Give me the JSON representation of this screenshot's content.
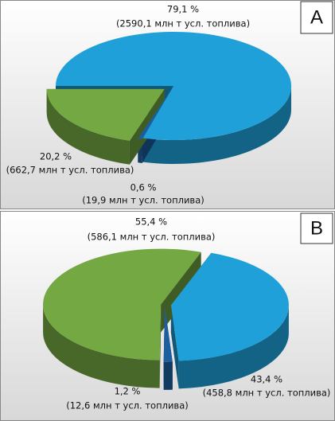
{
  "chart_data": [
    {
      "type": "pie",
      "panel": "A",
      "values": [
        79.1,
        0.6,
        20.2
      ],
      "value_labels": [
        "79,1 %",
        "0,6 %",
        "20,2 %"
      ],
      "annotations": [
        "(2590,1 млн т усл. топлива)",
        "(19,9 млн т усл. топлива)",
        "(662,7 млн т усл. топлива)"
      ],
      "colors": [
        "#1fa0d8",
        "#1d5f9e",
        "#74a843"
      ]
    },
    {
      "type": "pie",
      "panel": "B",
      "values": [
        43.4,
        1.2,
        55.4
      ],
      "value_labels": [
        "43,4 %",
        "1,2 %",
        "55,4 %"
      ],
      "annotations": [
        "(458,8 млн т усл. топлива)",
        "(12,6 млн т усл. топлива)",
        "(586,1 млн т усл. топлива)"
      ],
      "colors": [
        "#1fa0d8",
        "#1d5f9e",
        "#74a843"
      ]
    }
  ]
}
